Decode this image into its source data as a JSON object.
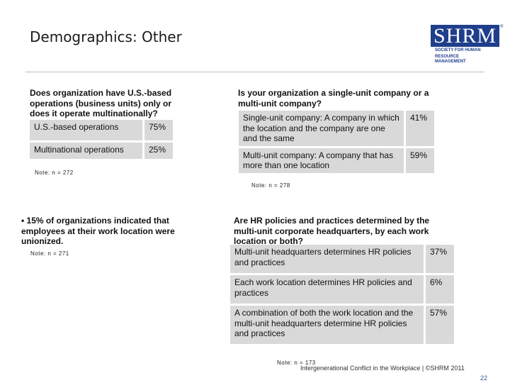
{
  "title": "Demographics: Other",
  "logo": {
    "word": "SHRM",
    "reg": "®",
    "sub_line1": "SOCIETY FOR HUMAN",
    "sub_line2": "RESOURCE MANAGEMENT",
    "color": "#1f3f8c"
  },
  "q1": {
    "heading": "Does organization have U.S.-based operations (business units) only or does it operate multinationally?",
    "rows": [
      {
        "label": "U.S.-based operations",
        "value": "75%"
      },
      {
        "label": "Multinational operations",
        "value": "25%"
      }
    ],
    "note": "Note: n = 272"
  },
  "q2": {
    "heading": "Is your organization a single-unit company or a multi-unit company?",
    "rows": [
      {
        "label": "Single-unit company: A company in which the location and the company are one and the same",
        "value": "41%"
      },
      {
        "label": "Multi-unit company: A company that has more than one location",
        "value": "59%"
      }
    ],
    "note": "Note: n = 278"
  },
  "bullet": {
    "text": "• 15% of organizations indicated that employees at their work location were unionized.",
    "note": "Note: n = 271"
  },
  "q3": {
    "heading": "Are HR policies and practices determined by the multi-unit corporate headquarters, by each work location or both?",
    "rows": [
      {
        "label": "Multi-unit headquarters determines HR policies and practices",
        "value": "37%"
      },
      {
        "label": "Each work location determines HR policies and practices",
        "value": "6%"
      },
      {
        "label": "A combination of both the work location and the multi-unit headquarters determine HR policies and practices",
        "value": "57%"
      }
    ],
    "note": "Note: n = 173"
  },
  "footer": "Intergenerational Conflict in the Workplace | ©SHRM 2011",
  "page_number": "22",
  "colors": {
    "cell_bg": "#d9d9d9",
    "rule": "#bfbfbf",
    "page_number": "#2f5597"
  }
}
